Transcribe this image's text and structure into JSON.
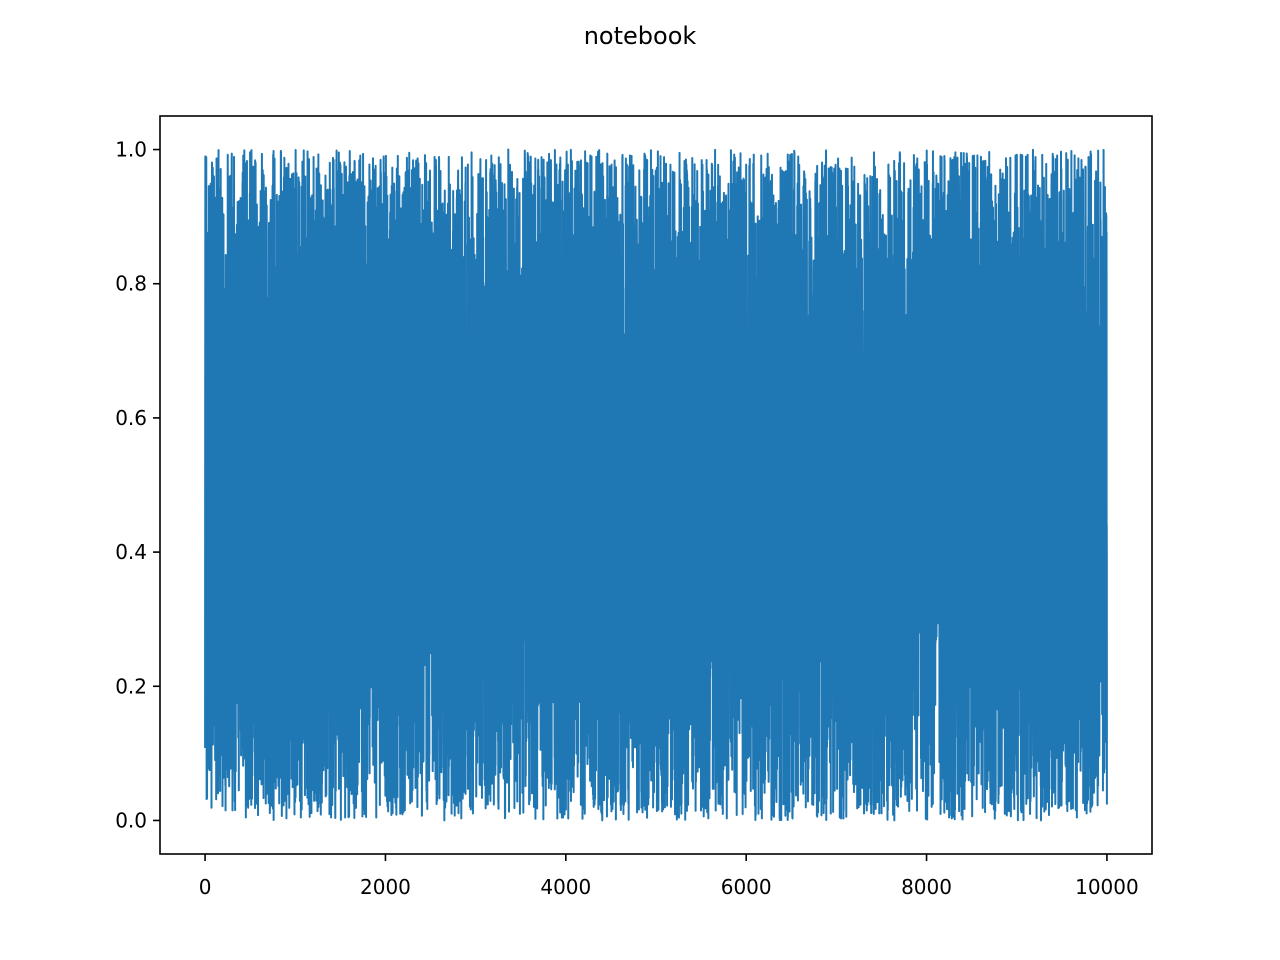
{
  "chart_data": {
    "type": "line",
    "title": "notebook",
    "xlabel": "",
    "ylabel": "",
    "xlim": [
      -500,
      10500
    ],
    "ylim": [
      -0.05,
      1.05
    ],
    "x_ticks": [
      0,
      2000,
      4000,
      6000,
      8000,
      10000
    ],
    "x_tick_labels": [
      "0",
      "2000",
      "4000",
      "6000",
      "8000",
      "10000"
    ],
    "y_ticks": [
      0.0,
      0.2,
      0.4,
      0.6,
      0.8,
      1.0
    ],
    "y_tick_labels": [
      "0.0",
      "0.2",
      "0.4",
      "0.6",
      "0.8",
      "1.0"
    ],
    "grid": false,
    "series": [
      {
        "color": "#1f77b4",
        "x_start": 0,
        "x_end": 10000,
        "n_points": 10001,
        "distribution": "uniform random values between 0 and 1",
        "value_min": 0.0,
        "value_max": 1.0
      }
    ]
  }
}
